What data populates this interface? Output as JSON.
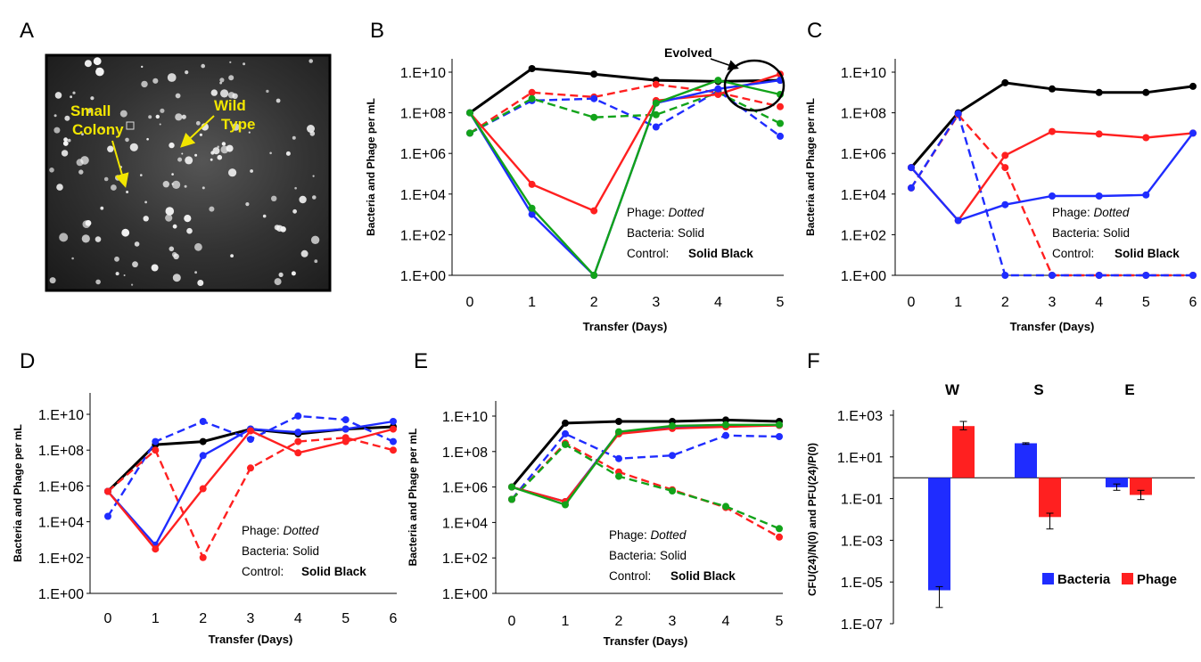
{
  "colors": {
    "black": "#000000",
    "red": "#ff2020",
    "blue": "#1f2cff",
    "green": "#12a31a",
    "yellow": "#f2e600"
  },
  "panels": {
    "A": {
      "letter": "A",
      "label_small": [
        "Small",
        "Colony"
      ],
      "label_wild": [
        "Wild",
        "Type"
      ]
    },
    "B": {
      "letter": "B"
    },
    "C": {
      "letter": "C"
    },
    "D": {
      "letter": "D"
    },
    "E": {
      "letter": "E"
    },
    "F": {
      "letter": "F"
    }
  },
  "chart_data": [
    {
      "id": "B",
      "type": "line",
      "ylabel": "Bacteria and Phage per mL",
      "xlabel": "Transfer (Days)",
      "x": [
        0,
        1,
        2,
        3,
        4,
        5
      ],
      "yscale": "log",
      "ylim": [
        1,
        10000000000.0
      ],
      "yticks": [
        "1.E+00",
        "1.E+02",
        "1.E+04",
        "1.E+06",
        "1.E+08",
        "1.E+10"
      ],
      "annotation": {
        "line1_label": "Phage: ",
        "line1_value": "Dotted",
        "line2_label": "Bacteria: ",
        "line2_value": "Solid",
        "line3_label": "Control: ",
        "line3_value": "Solid Black"
      },
      "callout": "Evolved",
      "series": [
        {
          "color": "black",
          "style": "solid",
          "values": [
            100000000.0,
            15000000000.0,
            8000000000.0,
            4000000000.0,
            3500000000.0,
            4000000000.0
          ]
        },
        {
          "color": "red",
          "style": "dashed",
          "values": [
            10000000.0,
            1000000000.0,
            600000000.0,
            2500000000.0,
            1000000000.0,
            200000000.0
          ]
        },
        {
          "color": "blue",
          "style": "dashed",
          "values": [
            10000000.0,
            400000000.0,
            500000000.0,
            20000000.0,
            1200000000.0,
            7000000.0
          ]
        },
        {
          "color": "green",
          "style": "dashed",
          "values": [
            10000000.0,
            500000000.0,
            60000000.0,
            80000000.0,
            1000000000.0,
            30000000.0
          ]
        },
        {
          "color": "red",
          "style": "solid",
          "values": [
            100000000.0,
            30000.0,
            1500.0,
            400000000.0,
            800000000.0,
            8000000000.0
          ]
        },
        {
          "color": "blue",
          "style": "solid",
          "values": [
            100000000.0,
            1000.0,
            1,
            300000000.0,
            1500000000.0,
            4000000000.0
          ]
        },
        {
          "color": "green",
          "style": "solid",
          "values": [
            100000000.0,
            2000.0,
            1,
            300000000.0,
            4000000000.0,
            800000000.0
          ]
        }
      ]
    },
    {
      "id": "C",
      "type": "line",
      "ylabel": "Bacteria and Phage per mL",
      "xlabel": "Transfer (Days)",
      "x": [
        0,
        1,
        2,
        3,
        4,
        5,
        6
      ],
      "yscale": "log",
      "ylim": [
        1,
        10000000000.0
      ],
      "yticks": [
        "1.E+00",
        "1.E+02",
        "1.E+04",
        "1.E+06",
        "1.E+08",
        "1.E+10"
      ],
      "annotation": {
        "line1_label": "Phage: ",
        "line1_value": "Dotted",
        "line2_label": "Bacteria: ",
        "line2_value": "Solid",
        "line3_label": "Control: ",
        "line3_value": "Solid Black"
      },
      "series": [
        {
          "color": "black",
          "style": "solid",
          "values": [
            200000.0,
            100000000.0,
            3000000000.0,
            1500000000.0,
            1000000000.0,
            1000000000.0,
            2000000000.0
          ]
        },
        {
          "color": "red",
          "style": "dashed",
          "values": [
            20000.0,
            80000000.0,
            200000.0,
            1,
            1,
            1,
            1
          ]
        },
        {
          "color": "blue",
          "style": "dashed",
          "values": [
            20000.0,
            90000000.0,
            1,
            1,
            1,
            1,
            1
          ]
        },
        {
          "color": "red",
          "style": "solid",
          "values": [
            200000.0,
            500,
            800000.0,
            12000000.0,
            9000000.0,
            6000000.0,
            10000000.0
          ]
        },
        {
          "color": "blue",
          "style": "solid",
          "values": [
            200000.0,
            500,
            3000.0,
            8000.0,
            8000.0,
            9000.0,
            10000000.0
          ]
        }
      ]
    },
    {
      "id": "D",
      "type": "line",
      "ylabel": "Bacteria and Phage per mL",
      "xlabel": "Transfer (Days)",
      "x": [
        0,
        1,
        2,
        3,
        4,
        5,
        6
      ],
      "yscale": "log",
      "ylim": [
        1,
        10000000000.0
      ],
      "yticks": [
        "1.E+00",
        "1.E+02",
        "1.E+04",
        "1.E+06",
        "1.E+08",
        "1.E+10"
      ],
      "annotation": {
        "line1_label": "Phage: ",
        "line1_value": "Dotted",
        "line2_label": "Bacteria: ",
        "line2_value": "Solid",
        "line3_label": "Control: ",
        "line3_value": "Solid Black"
      },
      "series": [
        {
          "color": "black",
          "style": "solid",
          "values": [
            500000.0,
            200000000.0,
            300000000.0,
            1500000000.0,
            800000000.0,
            1500000000.0,
            2000000000.0
          ]
        },
        {
          "color": "blue",
          "style": "dashed",
          "values": [
            20000.0,
            300000000.0,
            4000000000.0,
            400000000.0,
            8000000000.0,
            5000000000.0,
            300000000.0
          ]
        },
        {
          "color": "red",
          "style": "dashed",
          "values": [
            500000.0,
            100000000.0,
            100,
            10000000.0,
            300000000.0,
            500000000.0,
            100000000.0
          ]
        },
        {
          "color": "blue",
          "style": "solid",
          "values": [
            500000.0,
            500,
            50000000.0,
            1500000000.0,
            1000000000.0,
            1500000000.0,
            4000000000.0
          ]
        },
        {
          "color": "red",
          "style": "solid",
          "values": [
            500000.0,
            300,
            700000.0,
            1200000000.0,
            70000000.0,
            300000000.0,
            1500000000.0
          ]
        }
      ]
    },
    {
      "id": "E",
      "type": "line",
      "ylabel": "Bacteria and Phage per mL",
      "xlabel": "Transfer (Days)",
      "x": [
        0,
        1,
        2,
        3,
        4,
        5
      ],
      "yscale": "log",
      "ylim": [
        1,
        10000000000.0
      ],
      "yticks": [
        "1.E+00",
        "1.E+02",
        "1.E+04",
        "1.E+06",
        "1.E+08",
        "1.E+10"
      ],
      "annotation": {
        "line1_label": "Phage: ",
        "line1_value": "Dotted",
        "line2_label": "Bacteria: ",
        "line2_value": "Solid",
        "line3_label": "Control: ",
        "line3_value": "Solid Black"
      },
      "series": [
        {
          "color": "black",
          "style": "solid",
          "values": [
            1000000.0,
            4000000000.0,
            5000000000.0,
            5000000000.0,
            6000000000.0,
            5000000000.0
          ]
        },
        {
          "color": "blue",
          "style": "dashed",
          "values": [
            200000.0,
            1000000000.0,
            40000000.0,
            60000000.0,
            800000000.0,
            700000000.0
          ]
        },
        {
          "color": "red",
          "style": "dashed",
          "values": [
            200000.0,
            300000000.0,
            7000000.0,
            700000.0,
            70000.0,
            1500.0
          ]
        },
        {
          "color": "green",
          "style": "dashed",
          "values": [
            200000.0,
            250000000.0,
            4000000.0,
            600000.0,
            80000.0,
            4500.0
          ]
        },
        {
          "color": "blue",
          "style": "solid",
          "values": [
            1000000.0,
            150000.0,
            1200000000.0,
            2500000000.0,
            3000000000.0,
            3000000000.0
          ]
        },
        {
          "color": "red",
          "style": "solid",
          "values": [
            1000000.0,
            150000.0,
            1000000000.0,
            2000000000.0,
            2500000000.0,
            3000000000.0
          ]
        },
        {
          "color": "green",
          "style": "solid",
          "values": [
            1000000.0,
            100000.0,
            1300000000.0,
            2800000000.0,
            3200000000.0,
            3200000000.0
          ]
        }
      ]
    },
    {
      "id": "F",
      "type": "bar",
      "ylabel": "CFU(24)/N(0) and PFU(24)/P(0)",
      "yscale": "log",
      "ylim": [
        1e-07,
        1000.0
      ],
      "baseline": 1,
      "yticks": [
        "1.E+03",
        "1.E+01",
        "1.E-01",
        "1.E-03",
        "1.E-05",
        "1.E-07"
      ],
      "categories": [
        "W",
        "S",
        "E"
      ],
      "series": [
        {
          "name": "Bacteria",
          "color": "blue",
          "values": [
            4e-06,
            45,
            0.35
          ],
          "err_low": [
            6e-07,
            40,
            0.25
          ],
          "err_high": [
            6e-06,
            48,
            0.5
          ]
        },
        {
          "name": "Phage",
          "color": "red",
          "values": [
            300,
            0.013,
            0.15
          ],
          "err_low": [
            200,
            0.0035,
            0.09
          ],
          "err_high": [
            500,
            0.02,
            0.25
          ]
        }
      ]
    }
  ]
}
